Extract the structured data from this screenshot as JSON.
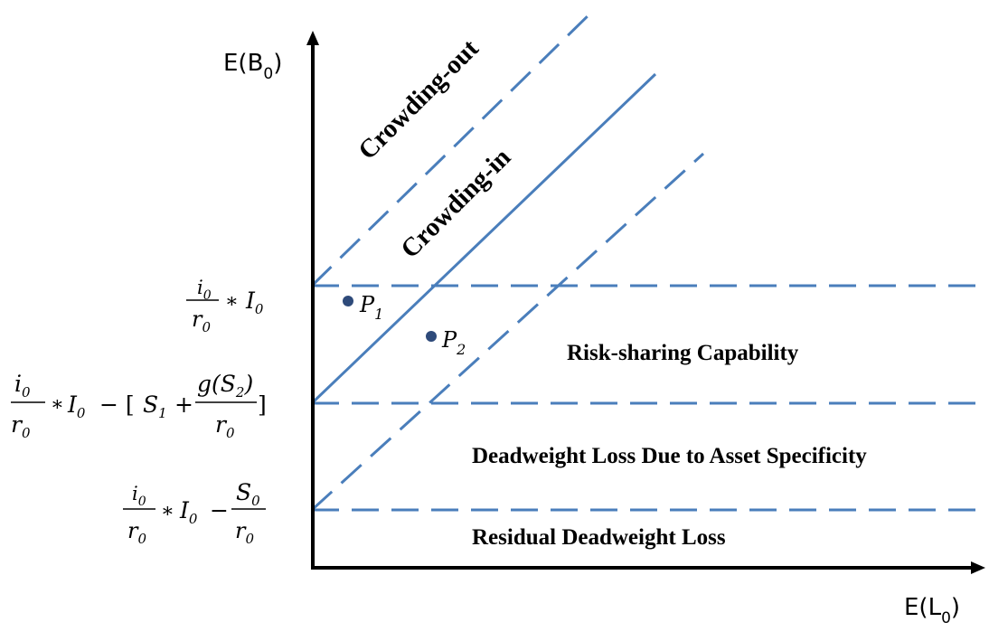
{
  "axes": {
    "y_title": {
      "main": "E(B",
      "sub": "0",
      "close": ")"
    },
    "x_title": {
      "main": "E(L",
      "sub": "0",
      "close": ")"
    }
  },
  "regions": {
    "crowding_out": "Crowding-out",
    "crowding_in": "Crowding-in",
    "risk_sharing": "Risk-sharing Capability",
    "deadweight_asset": "Deadweight Loss Due to Asset Specificity",
    "residual_deadweight": "Residual Deadweight Loss"
  },
  "y_labels": {
    "level_top": {
      "num": "i",
      "num_sub": "0",
      "den": "r",
      "den_sub": "0",
      "times": "∗",
      "I": "I",
      "I_sub": "0"
    },
    "level_mid": {
      "num": "i",
      "num_sub": "0",
      "den": "r",
      "den_sub": "0",
      "times": "∗",
      "I": "I",
      "I_sub": "0",
      "minus_bracket": "− [",
      "S1": "S",
      "S1_sub": "1",
      "plus": "+",
      "frac2_num": "g(S",
      "frac2_num_sub": "2",
      "frac2_num_close": ")",
      "frac2_den": "r",
      "frac2_den_sub": "0",
      "close": "]"
    },
    "level_low": {
      "num": "i",
      "num_sub": "0",
      "den": "r",
      "den_sub": "0",
      "times": "∗",
      "I": "I",
      "I_sub": "0",
      "minus": "−",
      "frac2_num": "S",
      "frac2_num_sub": "0",
      "frac2_den": "r",
      "frac2_den_sub": "0"
    }
  },
  "points": [
    {
      "letter": "P",
      "sub": "1"
    },
    {
      "letter": "P",
      "sub": "2"
    }
  ],
  "colors": {
    "line": "#4a7ebb",
    "axis": "#000000",
    "point": "#2e4a7a"
  }
}
